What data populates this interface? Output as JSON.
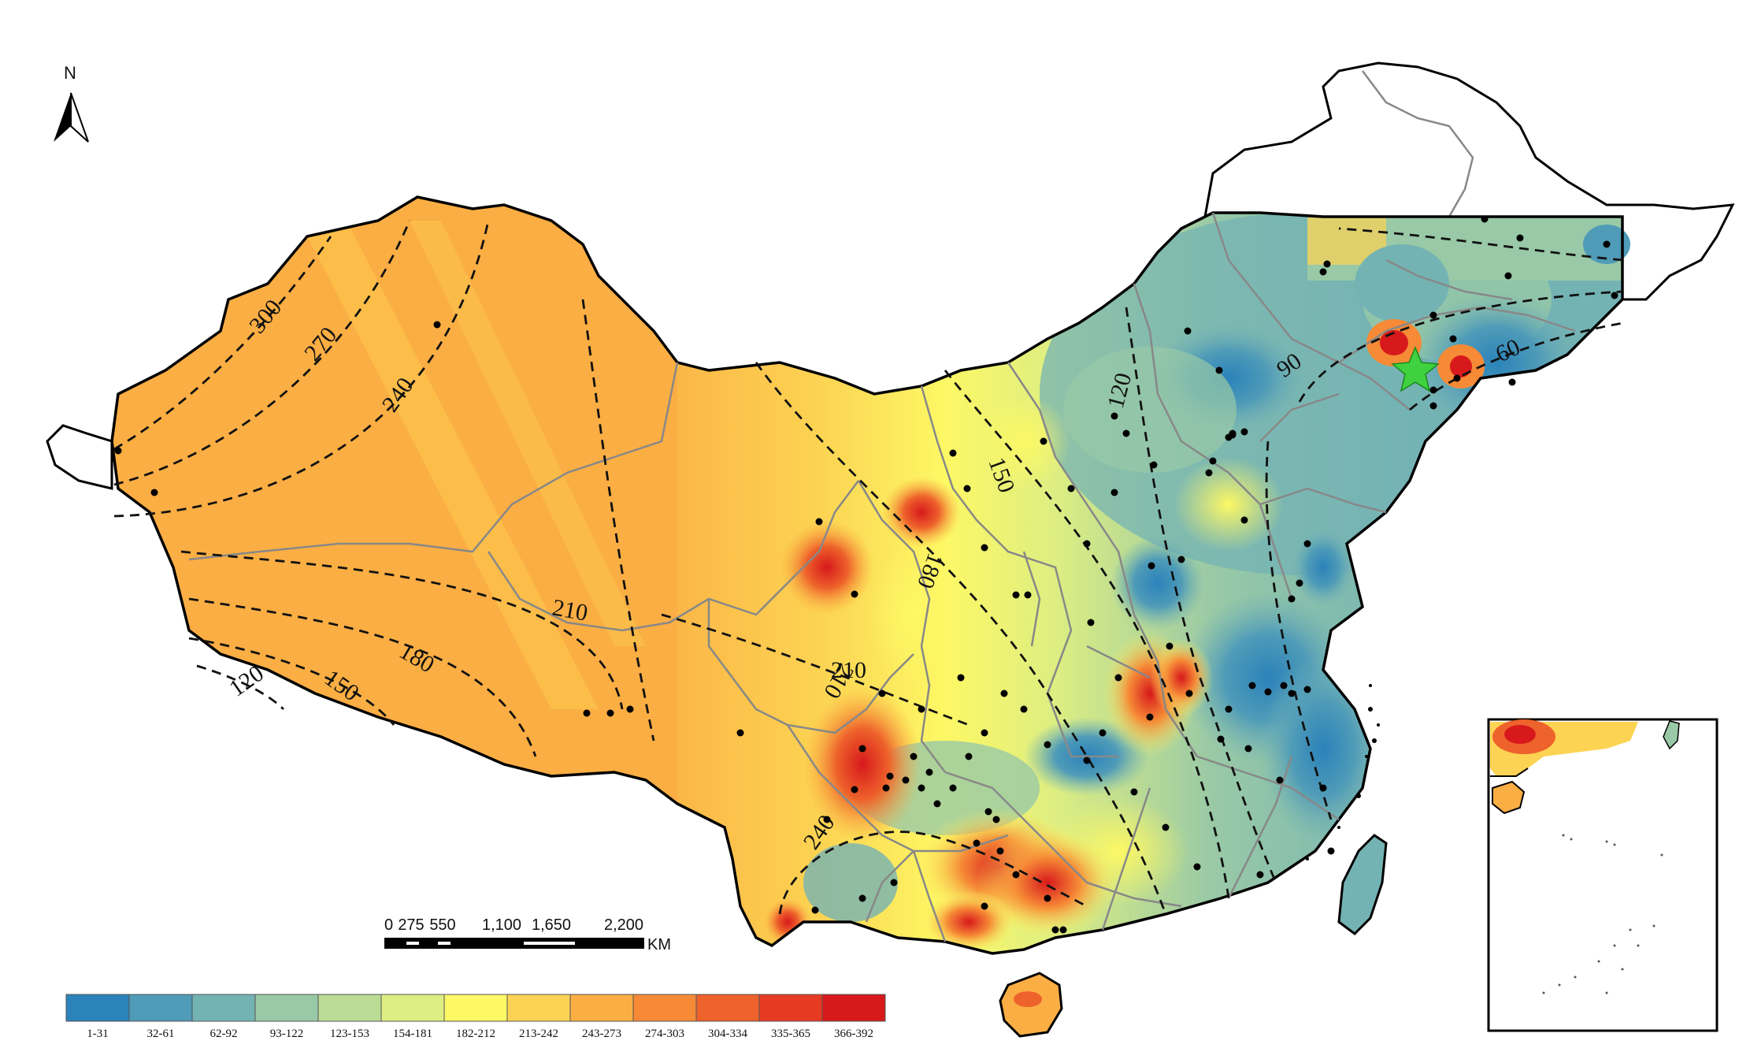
{
  "north_arrow": {
    "label": "N"
  },
  "scale_bar": {
    "ticks": [
      "0",
      "275",
      "550",
      "1,100",
      "1,650",
      "2,200"
    ],
    "unit": "KM"
  },
  "legend": {
    "classes": [
      {
        "label": "1-31",
        "color": "#2b83ba"
      },
      {
        "label": "32-61",
        "color": "#4f9bb8"
      },
      {
        "label": "62-92",
        "color": "#74b3b4"
      },
      {
        "label": "93-122",
        "color": "#99c9a6"
      },
      {
        "label": "123-153",
        "color": "#bbdc95"
      },
      {
        "label": "154-181",
        "color": "#ddee82"
      },
      {
        "label": "182-212",
        "color": "#fdf865"
      },
      {
        "label": "213-242",
        "color": "#fcd352"
      },
      {
        "label": "243-273",
        "color": "#fbae43"
      },
      {
        "label": "274-303",
        "color": "#f68a36"
      },
      {
        "label": "304-334",
        "color": "#ee622b"
      },
      {
        "label": "335-365",
        "color": "#e63a22"
      },
      {
        "label": "366-392",
        "color": "#d7191c"
      }
    ]
  },
  "contours": [
    {
      "label": "300"
    },
    {
      "label": "270"
    },
    {
      "label": "240"
    },
    {
      "label": "210"
    },
    {
      "label": "180"
    },
    {
      "label": "150"
    },
    {
      "label": "120"
    },
    {
      "label": "210"
    },
    {
      "label": "180"
    },
    {
      "label": "150"
    },
    {
      "label": "120"
    },
    {
      "label": "90"
    },
    {
      "label": "60"
    },
    {
      "label": "210"
    },
    {
      "label": "240"
    },
    {
      "label": "270"
    }
  ],
  "study_site": {
    "marker": "star",
    "color": "#3fd13f"
  },
  "stations_count_visible": 0
}
